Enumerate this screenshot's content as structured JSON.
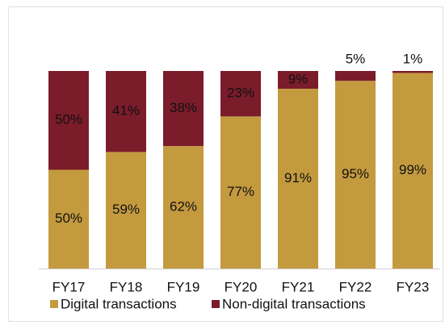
{
  "chart_data": {
    "type": "stacked_bar",
    "categories": [
      "FY17",
      "FY18",
      "FY19",
      "FY20",
      "FY21",
      "FY22",
      "FY23"
    ],
    "series": [
      {
        "name": "Digital transactions",
        "color": "#c49a3f",
        "values": [
          50,
          59,
          62,
          77,
          91,
          95,
          99
        ],
        "value_labels": [
          "50%",
          "59%",
          "62%",
          "77%",
          "91%",
          "95%",
          "99%"
        ]
      },
      {
        "name": "Non-digital transactions",
        "color": "#7b1c2b",
        "values": [
          50,
          41,
          38,
          23,
          9,
          5,
          1
        ],
        "value_labels": [
          "50%",
          "41%",
          "38%",
          "23%",
          "9%",
          "5%",
          "1%"
        ]
      }
    ],
    "legend": "bottom"
  }
}
